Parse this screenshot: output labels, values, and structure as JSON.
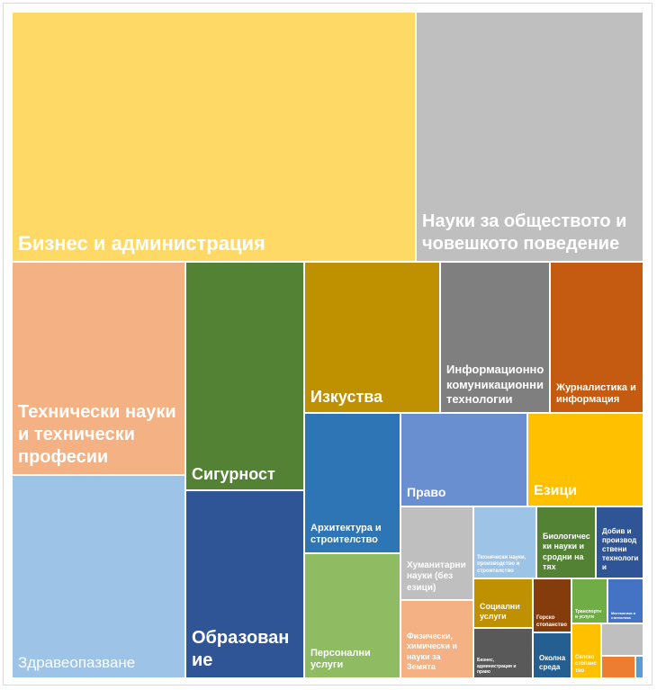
{
  "chart_data": {
    "type": "treemap",
    "title": "",
    "items": [
      {
        "label": "Бизнес и администрация",
        "color": "#FFD966"
      },
      {
        "label": "Науки за обществото и човешкото поведение",
        "color": "#BFBFBF"
      },
      {
        "label": "Технически науки и технически професии",
        "color": "#F4B183"
      },
      {
        "label": "Здравеопазване",
        "color": "#9DC3E6"
      },
      {
        "label": "Сигурност",
        "color": "#548235"
      },
      {
        "label": "Образование",
        "color": "#2F5597"
      },
      {
        "label": "Изкуства",
        "color": "#BF9000"
      },
      {
        "label": "Информационнокомуникационни технологии",
        "color": "#7F7F7F"
      },
      {
        "label": "Журналистика и информация",
        "color": "#C55A11"
      },
      {
        "label": "Архитектура и строителство",
        "color": "#2E75B6"
      },
      {
        "label": "Персонални услуги",
        "color": "#8FBC63"
      },
      {
        "label": "Право",
        "color": "#6A8FD0"
      },
      {
        "label": "Езици",
        "color": "#FFC000"
      },
      {
        "label": "Хуманитарни науки (без езици)",
        "color": "#BFBFBF"
      },
      {
        "label": "Физически, химически и науки за Земята",
        "color": "#F4B183"
      },
      {
        "label": "Технически науки, производство и строителство",
        "color": "#9DC3E6"
      },
      {
        "label": "Биологически науки и сродни на тях",
        "color": "#548235"
      },
      {
        "label": "Добив и производствени технологии",
        "color": "#2F5597"
      },
      {
        "label": "Социални услуги",
        "color": "#BF9000"
      },
      {
        "label": "Горско стопанство",
        "color": "#843C0C"
      },
      {
        "label": "Транспортни услуги",
        "color": "#70AD47"
      },
      {
        "label": "Математика и статистика",
        "color": "#4472C4"
      },
      {
        "label": "Бизнес, администрация и право",
        "color": "#595959"
      },
      {
        "label": "Околна среда",
        "color": "#255E91"
      },
      {
        "label": "Селско стопанство",
        "color": "#FFC000"
      },
      {
        "label": "",
        "color": "#BFBFBF"
      },
      {
        "label": "",
        "color": "#ED7D31"
      },
      {
        "label": "",
        "color": "#5B9BD5"
      }
    ]
  }
}
